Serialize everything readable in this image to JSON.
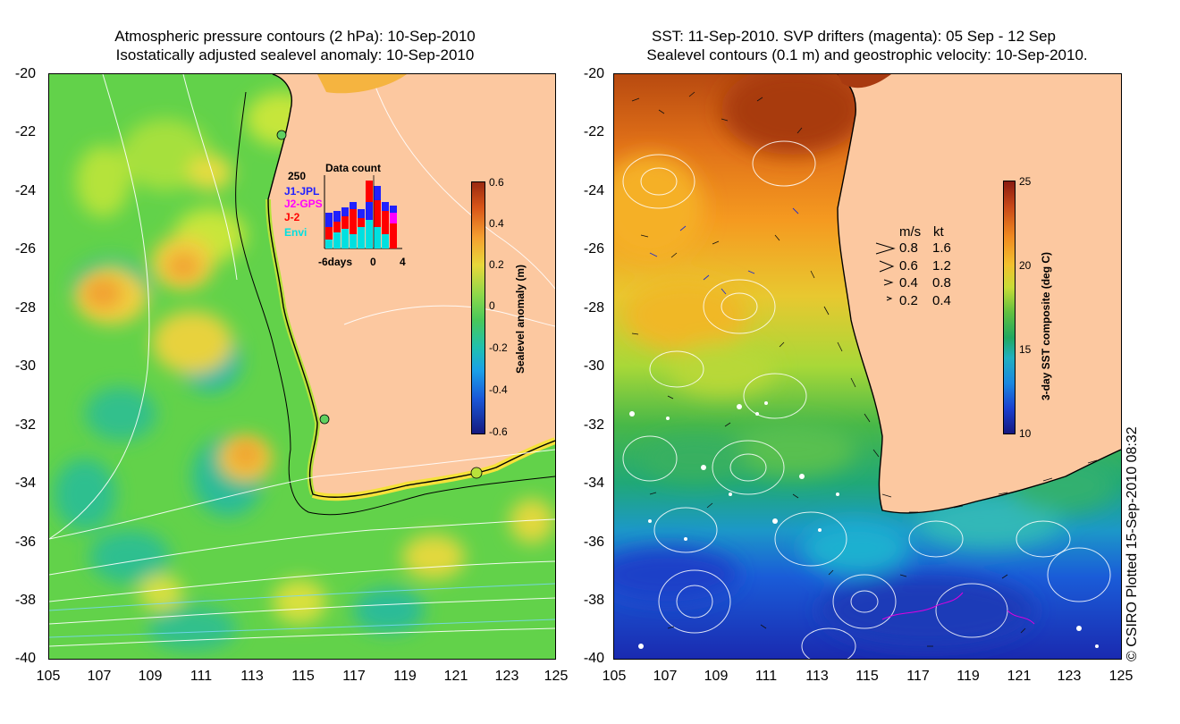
{
  "left": {
    "title_line1": "Atmospheric pressure contours (2 hPa): 10-Sep-2010",
    "title_line2": "Isostatically adjusted sealevel anomaly: 10-Sep-2010",
    "y_ticks": [
      "-20",
      "-22",
      "-24",
      "-26",
      "-28",
      "-30",
      "-32",
      "-34",
      "-36",
      "-38",
      "-40"
    ],
    "x_ticks": [
      "105",
      "107",
      "109",
      "111",
      "113",
      "115",
      "117",
      "119",
      "121",
      "123",
      "125"
    ],
    "colorbar": {
      "label": "Sealevel anomaly (m)",
      "ticks": [
        "0.6",
        "0.4",
        "0.2",
        "0",
        "-0.2",
        "-0.4",
        "-0.6"
      ]
    },
    "data_count": {
      "title": "Data count",
      "ymax": "250",
      "x_labels": [
        "-6days",
        "0",
        "4"
      ],
      "missions": [
        {
          "name": "J1-JPL",
          "color": "#2020ff"
        },
        {
          "name": "J2-GPS",
          "color": "#ff00ff"
        },
        {
          "name": "J-2",
          "color": "#ff0000"
        },
        {
          "name": "Envi",
          "color": "#00e0e0"
        }
      ]
    }
  },
  "right": {
    "title_line1": "SST: 11-Sep-2010. SVP drifters (magenta): 05 Sep - 12 Sep",
    "title_line2": "Sealevel contours (0.1 m) and geostrophic velocity: 10-Sep-2010.",
    "y_ticks": [
      "-20",
      "-22",
      "-24",
      "-26",
      "-28",
      "-30",
      "-32",
      "-34",
      "-36",
      "-38",
      "-40"
    ],
    "x_ticks": [
      "105",
      "107",
      "109",
      "111",
      "113",
      "115",
      "117",
      "119",
      "121",
      "123",
      "125"
    ],
    "colorbar": {
      "label": "3-day SST composite (deg C)",
      "ticks": [
        "25",
        "20",
        "15",
        "10"
      ]
    },
    "velocity_legend": {
      "header_ms": "m/s",
      "header_kt": "kt",
      "rows": [
        {
          "ms": "0.8",
          "kt": "1.6"
        },
        {
          "ms": "0.6",
          "kt": "1.2"
        },
        {
          "ms": "0.4",
          "kt": "0.8"
        },
        {
          "ms": "0.2",
          "kt": "0.4"
        }
      ]
    }
  },
  "credit": "© CSIRO Plotted 15-Sep-2010 08:32"
}
